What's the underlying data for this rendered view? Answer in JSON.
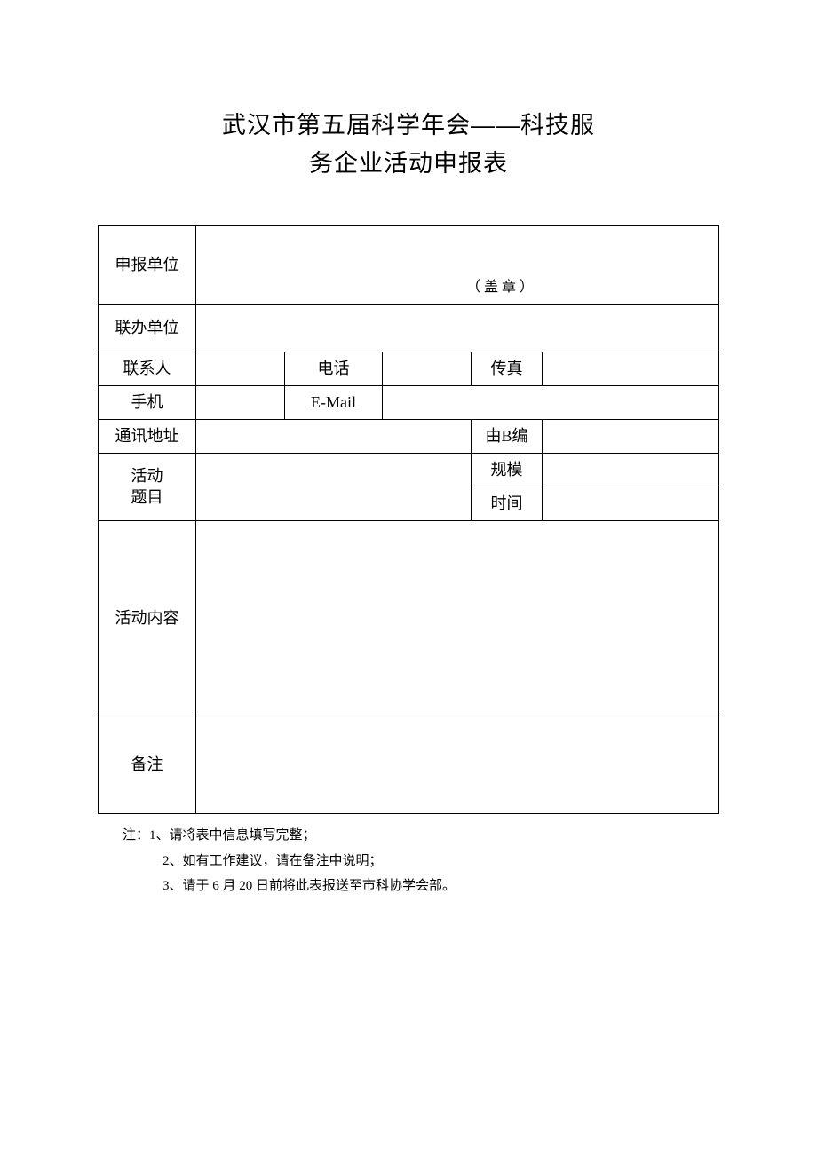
{
  "title_line1": "武汉市第五届科学年会——科技服",
  "title_line2": "务企业活动申报表",
  "labels": {
    "applicant_unit": "申报单位",
    "seal": "（盖章）",
    "co_unit": "联办单位",
    "contact": "联系人",
    "phone": "电话",
    "fax": "传真",
    "mobile": "手机",
    "email": "E-Mail",
    "address": "通讯地址",
    "postcode": "由B编",
    "activity": "活动",
    "topic": "题目",
    "scale": "规模",
    "time": "时间",
    "content": "活动内容",
    "remark": "备注"
  },
  "values": {
    "applicant_unit": "",
    "co_unit": "",
    "contact": "",
    "phone": "",
    "fax": "",
    "mobile": "",
    "email": "",
    "address": "",
    "postcode": "",
    "activity_topic": "",
    "scale": "",
    "time": "",
    "content": "",
    "remark": ""
  },
  "notes": {
    "prefix": "注：",
    "n1": "1、请将表中信息填写完整；",
    "n2": "2、如有工作建议，请在备注中说明；",
    "n3": "3、请于 6 月 20 日前将此表报送至市科协学会部。"
  },
  "style": {
    "page_bg": "#ffffff",
    "border_color": "#000000",
    "title_fontsize": 27,
    "body_fontsize": 18,
    "notes_fontsize": 15
  }
}
